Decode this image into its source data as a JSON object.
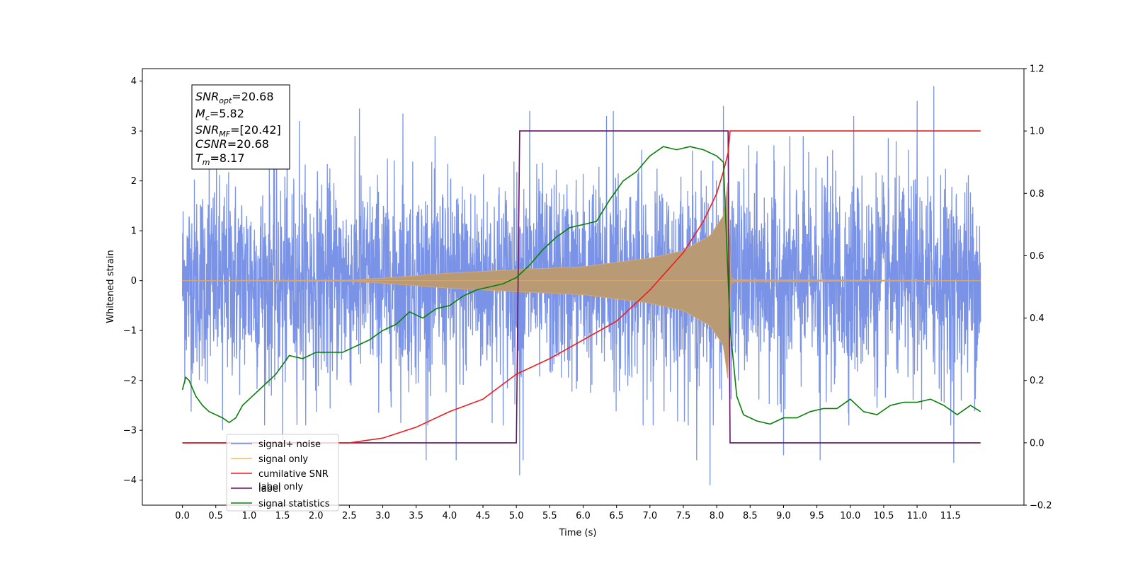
{
  "chart_data": {
    "type": "line",
    "xlabel": "Time (s)",
    "ylabel_left": "Whitened strain",
    "ylabel_right": "",
    "xlim": [
      -0.6,
      12.6
    ],
    "ylim_left": [
      -4.5,
      4.25
    ],
    "ylim_right": [
      -0.2,
      1.2
    ],
    "x_ticks": [
      0.0,
      0.5,
      1.0,
      1.5,
      2.0,
      2.5,
      3.0,
      3.5,
      4.0,
      4.5,
      5.0,
      5.5,
      6.0,
      6.5,
      7.0,
      7.5,
      8.0,
      8.5,
      9.0,
      9.5,
      10.0,
      10.5,
      11.0,
      11.5
    ],
    "x_tick_labels": [
      "0.0",
      "0.5",
      "1.0",
      "1.5",
      "2.0",
      "2.5",
      "3.0",
      "3.5",
      "4.0",
      "4.5",
      "5.0",
      "5.5",
      "6.0",
      "6.5",
      "7.0",
      "7.5",
      "8.0",
      "8.5",
      "9.0",
      "9.5",
      "10.0",
      "10.5",
      "11.0",
      "11.5"
    ],
    "y_left_ticks": [
      -4,
      -3,
      -2,
      -1,
      0,
      1,
      2,
      3,
      4
    ],
    "y_left_tick_labels": [
      "−4",
      "−3",
      "−2",
      "−1",
      "0",
      "1",
      "2",
      "3",
      "4"
    ],
    "y_right_ticks": [
      -0.2,
      0.0,
      0.2,
      0.4,
      0.6,
      0.8,
      1.0,
      1.2
    ],
    "y_right_tick_labels": [
      "−0.2",
      "0.0",
      "0.2",
      "0.4",
      "0.6",
      "0.8",
      "1.0",
      "1.2"
    ],
    "grid": false,
    "legend_position": "lower-left",
    "legend": [
      {
        "label": "signal+ noise",
        "color": "#6b87e3"
      },
      {
        "label": "signal only",
        "color": "#f5b56a"
      },
      {
        "label": "cumilative SNR",
        "color": "#ee1c1c"
      },
      {
        "label": "label",
        "color": "#6a0f6a"
      },
      {
        "label": "signal statistics",
        "color": "#087f08"
      }
    ],
    "legend_hidden_text": "label only",
    "info_box": {
      "snr_opt": {
        "base": "SNR",
        "sub": "opt",
        "value": "=20.68"
      },
      "mc": {
        "base": "M",
        "sub": "c",
        "value": "=5.82"
      },
      "snr_mf": {
        "base": "SNR",
        "sub": "MF",
        "value": "=[20.42]"
      },
      "csnr": {
        "base": "CSNR",
        "value": "=20.68"
      },
      "tm": {
        "base": "T",
        "sub": "m",
        "value": "=8.17"
      }
    },
    "series": [
      {
        "name": "signal+ noise",
        "axis": "left",
        "color": "#6b87e3",
        "t_start": 0.0,
        "t_end": 11.95,
        "envelope_sigma": 1.0,
        "peaks_high": [
          [
            0.4,
            2.8
          ],
          [
            0.6,
            3.2
          ],
          [
            1.75,
            3.2
          ],
          [
            2.65,
            3.45
          ],
          [
            3.3,
            3.35
          ],
          [
            5.2,
            3.4
          ],
          [
            6.35,
            3.3
          ],
          [
            6.45,
            3.4
          ],
          [
            8.1,
            3.5
          ],
          [
            10.05,
            3.3
          ],
          [
            11.0,
            3.6
          ],
          [
            11.25,
            3.9
          ]
        ],
        "peaks_low": [
          [
            0.6,
            -3.0
          ],
          [
            1.5,
            -3.2
          ],
          [
            3.65,
            -3.6
          ],
          [
            4.1,
            -3.6
          ],
          [
            5.05,
            -3.9
          ],
          [
            5.1,
            -3.6
          ],
          [
            7.7,
            -3.6
          ],
          [
            7.9,
            -4.1
          ],
          [
            9.0,
            -3.5
          ],
          [
            9.55,
            -3.6
          ],
          [
            11.55,
            -3.65
          ]
        ]
      },
      {
        "name": "signal only",
        "axis": "left",
        "color": "#d8a66e",
        "t_start": 0.0,
        "t_end": 11.95,
        "envelope": [
          [
            0.0,
            0.0
          ],
          [
            2.5,
            0.01
          ],
          [
            3.0,
            0.05
          ],
          [
            4.0,
            0.15
          ],
          [
            5.0,
            0.22
          ],
          [
            6.0,
            0.28
          ],
          [
            7.0,
            0.45
          ],
          [
            7.5,
            0.6
          ],
          [
            7.9,
            0.9
          ],
          [
            8.1,
            1.3
          ],
          [
            8.17,
            2.0
          ],
          [
            8.2,
            0.1
          ],
          [
            8.25,
            0.02
          ],
          [
            11.95,
            0.0
          ]
        ]
      },
      {
        "name": "cumilative SNR",
        "axis": "right",
        "color": "#ee1c1c",
        "x": [
          0.0,
          2.5,
          3.0,
          3.5,
          4.0,
          4.5,
          5.0,
          5.5,
          6.0,
          6.5,
          7.0,
          7.5,
          7.8,
          8.0,
          8.1,
          8.17,
          8.2,
          11.95
        ],
        "y": [
          0.0,
          0.0,
          0.015,
          0.05,
          0.1,
          0.14,
          0.22,
          0.27,
          0.33,
          0.39,
          0.49,
          0.61,
          0.71,
          0.8,
          0.87,
          0.93,
          1.0,
          1.0
        ]
      },
      {
        "name": "label",
        "axis": "right",
        "color": "#6a0f6a",
        "x": [
          0.0,
          5.0,
          5.05,
          8.17,
          8.2,
          11.95
        ],
        "y": [
          0.0,
          0.0,
          1.0,
          1.0,
          0.0,
          0.0
        ]
      },
      {
        "name": "signal statistics",
        "axis": "right",
        "color": "#087f08",
        "x": [
          0.0,
          0.05,
          0.1,
          0.2,
          0.3,
          0.4,
          0.5,
          0.6,
          0.7,
          0.8,
          0.9,
          1.0,
          1.2,
          1.4,
          1.6,
          1.8,
          2.0,
          2.2,
          2.4,
          2.6,
          2.8,
          3.0,
          3.2,
          3.4,
          3.6,
          3.8,
          4.0,
          4.2,
          4.4,
          4.6,
          4.8,
          5.0,
          5.2,
          5.4,
          5.6,
          5.8,
          6.0,
          6.2,
          6.4,
          6.6,
          6.8,
          7.0,
          7.2,
          7.4,
          7.6,
          7.8,
          8.0,
          8.1,
          8.2,
          8.3,
          8.4,
          8.6,
          8.8,
          9.0,
          9.2,
          9.4,
          9.6,
          9.8,
          10.0,
          10.2,
          10.4,
          10.6,
          10.8,
          11.0,
          11.2,
          11.4,
          11.6,
          11.8,
          11.95
        ],
        "y": [
          0.17,
          0.21,
          0.2,
          0.15,
          0.12,
          0.1,
          0.09,
          0.08,
          0.065,
          0.08,
          0.12,
          0.14,
          0.18,
          0.22,
          0.28,
          0.27,
          0.29,
          0.29,
          0.29,
          0.31,
          0.33,
          0.36,
          0.38,
          0.42,
          0.4,
          0.43,
          0.44,
          0.47,
          0.49,
          0.5,
          0.51,
          0.53,
          0.57,
          0.62,
          0.66,
          0.69,
          0.7,
          0.71,
          0.78,
          0.84,
          0.87,
          0.92,
          0.95,
          0.94,
          0.95,
          0.94,
          0.92,
          0.9,
          0.37,
          0.15,
          0.09,
          0.07,
          0.06,
          0.08,
          0.08,
          0.1,
          0.11,
          0.11,
          0.14,
          0.1,
          0.09,
          0.12,
          0.13,
          0.13,
          0.14,
          0.12,
          0.09,
          0.12,
          0.1
        ]
      }
    ]
  }
}
